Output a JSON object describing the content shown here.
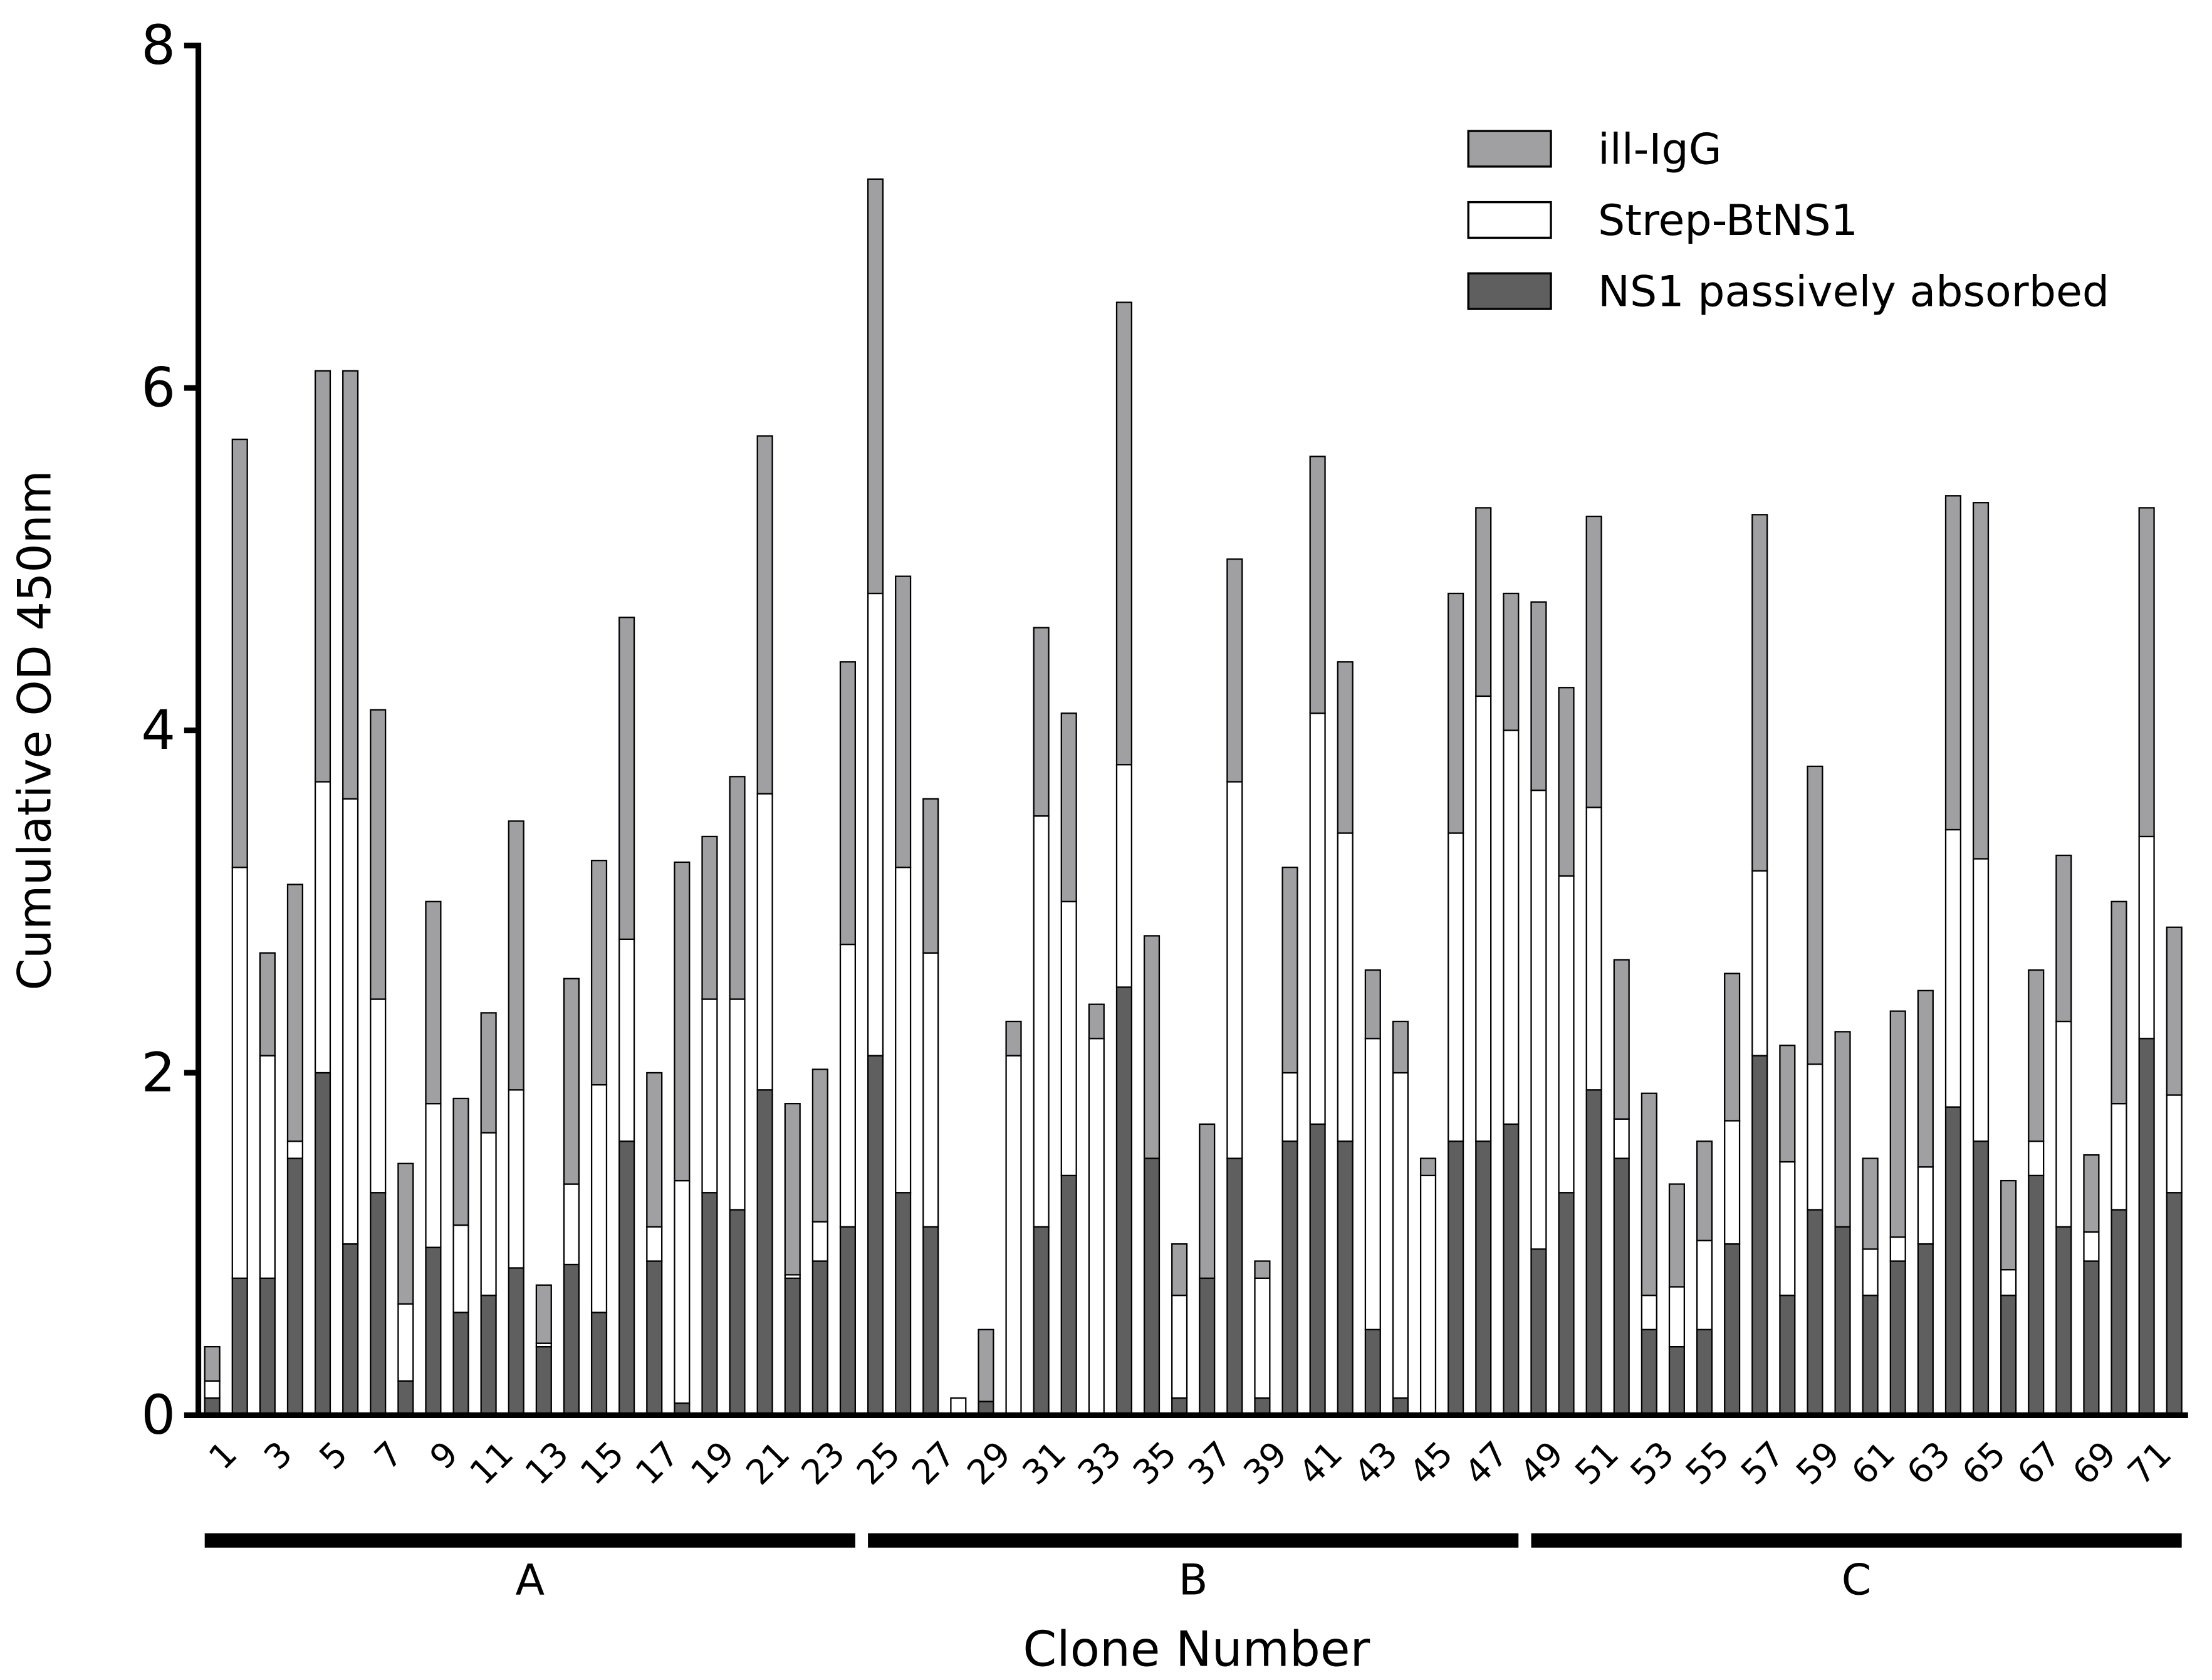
{
  "chart_data": {
    "type": "stacked_bar",
    "y_label": "Cumulative OD 450nm",
    "x_label": "Clone Number",
    "categories": [
      1,
      null,
      3,
      null,
      5,
      null,
      7,
      null,
      9,
      null,
      11,
      null,
      13,
      null,
      15,
      null,
      17,
      null,
      19,
      null,
      21,
      null,
      23,
      null,
      25,
      null,
      27,
      null,
      29,
      null,
      31,
      null,
      33,
      null,
      35,
      null,
      37,
      null,
      39,
      null,
      41,
      null,
      43,
      null,
      45,
      null,
      47,
      null,
      49,
      null,
      51,
      null,
      53,
      null,
      55,
      null,
      57,
      null,
      59,
      null,
      61,
      null,
      63,
      null,
      65,
      null,
      67,
      null,
      69,
      null,
      71,
      null
    ],
    "groups": [
      {
        "label": "A",
        "from": 1,
        "to": 24
      },
      {
        "label": "B",
        "from": 25,
        "to": 48
      },
      {
        "label": "C",
        "from": 49,
        "to": 72
      }
    ],
    "series": [
      {
        "name": "NS1 passively absorbed",
        "color": "#5f5f5f",
        "values": [
          0.1,
          0.8,
          0.8,
          1.5,
          2.0,
          1.0,
          1.3,
          0.2,
          0.98,
          0.6,
          0.7,
          0.86,
          0.4,
          0.88,
          0.6,
          1.6,
          0.9,
          0.07,
          1.3,
          1.2,
          1.9,
          0.8,
          0.9,
          1.1,
          2.1,
          1.3,
          1.1,
          0,
          0.08,
          0,
          1.1,
          1.4,
          0,
          2.5,
          1.5,
          0.1,
          0.8,
          1.5,
          0.1,
          1.6,
          1.7,
          1.6,
          0.5,
          0.1,
          0,
          1.6,
          1.6,
          1.7,
          0.97,
          1.3,
          1.9,
          1.5,
          0.5,
          0.4,
          0.5,
          1.0,
          2.1,
          0.7,
          1.2,
          1.1,
          0.7,
          0.9,
          1.0,
          1.8,
          1.6,
          0.7,
          1.4,
          1.1,
          0.9,
          1.2,
          2.2,
          1.3
        ]
      },
      {
        "name": "Strep-BtNS1",
        "color": "#ffffff",
        "values": [
          0.1,
          2.4,
          1.3,
          0.1,
          1.7,
          2.6,
          1.13,
          0.45,
          0.84,
          0.51,
          0.95,
          1.04,
          0.02,
          0.47,
          1.33,
          1.18,
          0.2,
          1.3,
          1.13,
          1.23,
          1.73,
          0.02,
          0.23,
          1.65,
          2.7,
          1.9,
          1.6,
          0.1,
          0,
          2.1,
          2.4,
          1.6,
          2.2,
          1.3,
          0,
          0.6,
          0,
          2.2,
          0.7,
          0.4,
          2.4,
          1.8,
          1.7,
          1.9,
          1.4,
          1.8,
          2.6,
          2.3,
          2.68,
          1.85,
          1.65,
          0.23,
          0.2,
          0.35,
          0.52,
          0.72,
          1.08,
          0.78,
          0.85,
          0,
          0.27,
          0.14,
          0.45,
          1.62,
          1.65,
          0.15,
          0.2,
          1.2,
          0.17,
          0.62,
          1.18,
          0.57
        ]
      },
      {
        "name": "ill-IgG",
        "color": "#a0a0a2",
        "values": [
          0.2,
          2.5,
          0.6,
          1.5,
          2.4,
          2.5,
          1.69,
          0.82,
          1.18,
          0.74,
          0.7,
          1.57,
          0.34,
          1.2,
          1.31,
          1.88,
          0.9,
          1.86,
          0.95,
          1.3,
          2.09,
          1.0,
          0.89,
          1.65,
          2.42,
          1.7,
          0.9,
          0,
          0.42,
          0.2,
          1.1,
          1.1,
          0.2,
          2.7,
          1.3,
          0.3,
          0.9,
          1.3,
          0.1,
          1.2,
          1.5,
          1.0,
          0.4,
          0.3,
          0.1,
          1.4,
          1.1,
          0.8,
          1.1,
          1.1,
          1.7,
          0.93,
          1.18,
          0.6,
          0.58,
          0.86,
          2.08,
          0.68,
          1.74,
          1.14,
          0.53,
          1.32,
          1.03,
          1.95,
          2.08,
          0.52,
          1.0,
          0.97,
          0.45,
          1.18,
          1.92,
          0.98
        ]
      }
    ],
    "ylim": [
      0,
      8
    ],
    "yticks": [
      0,
      2,
      4,
      6,
      8
    ],
    "legend": "top-right",
    "grid": false
  }
}
